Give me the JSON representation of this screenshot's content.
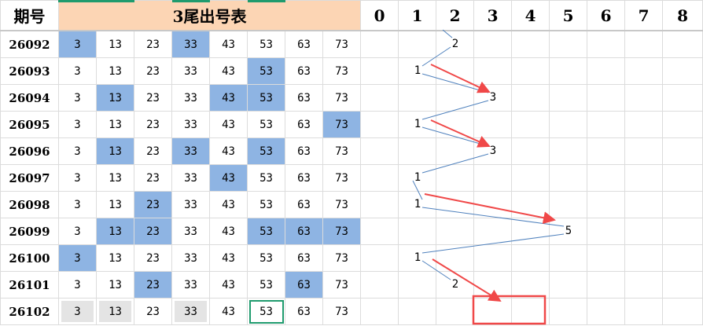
{
  "header": {
    "period_label": "期号",
    "table_title": "3尾出号表",
    "digit_columns": [
      "0",
      "1",
      "2",
      "3",
      "4",
      "5",
      "6",
      "7",
      "8"
    ]
  },
  "numbers": [
    "3",
    "13",
    "23",
    "33",
    "43",
    "53",
    "63",
    "73"
  ],
  "rows": [
    {
      "id": "26092",
      "hi": [
        0,
        3
      ],
      "value": "2"
    },
    {
      "id": "26093",
      "hi": [
        5
      ],
      "value": "1"
    },
    {
      "id": "26094",
      "hi": [
        1,
        4,
        5
      ],
      "value": "3"
    },
    {
      "id": "26095",
      "hi": [
        7
      ],
      "value": "1"
    },
    {
      "id": "26096",
      "hi": [
        1,
        3,
        5
      ],
      "value": "3"
    },
    {
      "id": "26097",
      "hi": [
        4
      ],
      "value": "1"
    },
    {
      "id": "26098",
      "hi": [
        2
      ],
      "value": "1"
    },
    {
      "id": "26099",
      "hi": [
        1,
        2,
        5,
        6,
        7
      ],
      "value": "5"
    },
    {
      "id": "26100",
      "hi": [
        0
      ],
      "value": "1"
    },
    {
      "id": "26101",
      "hi": [
        2,
        6
      ],
      "value": "2"
    },
    {
      "id": "26102",
      "hi": [],
      "gray": [
        0,
        1,
        3
      ],
      "selected": 5,
      "value": ""
    }
  ],
  "colors": {
    "highlight": "#8eb4e3",
    "title_bg": "#fcd5b4",
    "line": "#4f81bd",
    "arrow": "#f04848",
    "selection": "#1f9b6e"
  }
}
